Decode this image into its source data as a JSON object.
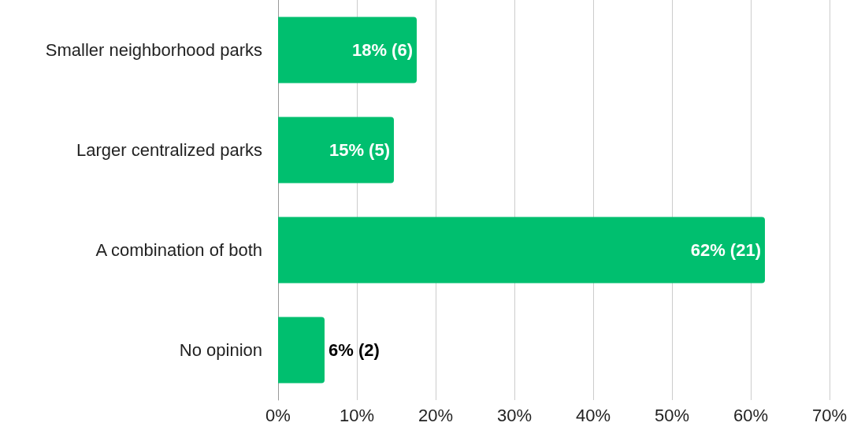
{
  "chart_data": {
    "type": "bar",
    "orientation": "horizontal",
    "categories": [
      "Smaller neighborhood parks",
      "Larger centralized parks",
      "A combination of both",
      "No opinion"
    ],
    "values": [
      17.6,
      14.7,
      61.8,
      5.9
    ],
    "color": "#00bf6f",
    "value_labels": [
      "18% (6)",
      "15% (5)",
      "62% (21)",
      "6% (2)"
    ],
    "xlim": [
      0,
      70
    ],
    "xticks": [
      {
        "value": 0,
        "label": "0%"
      },
      {
        "value": 10,
        "label": "10%"
      },
      {
        "value": 20,
        "label": "20%"
      },
      {
        "value": 30,
        "label": "30%"
      },
      {
        "value": 40,
        "label": "40%"
      },
      {
        "value": 50,
        "label": "50%"
      },
      {
        "value": 60,
        "label": "60%"
      },
      {
        "value": 70,
        "label": "70%"
      }
    ],
    "grid": "x"
  }
}
